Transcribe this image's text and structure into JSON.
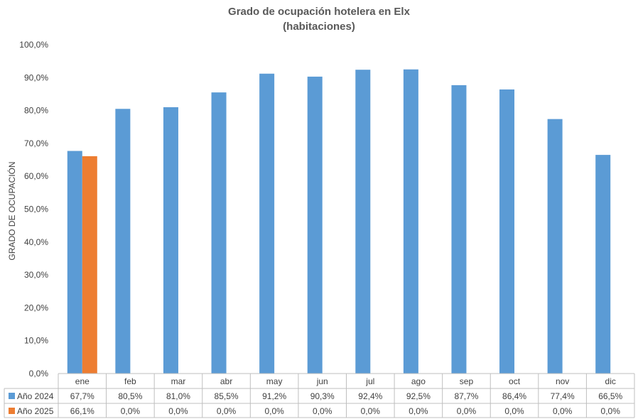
{
  "chart_data": {
    "type": "bar",
    "title": "Grado de ocupación hotelera en Elx",
    "subtitle": "(habitaciones)",
    "ylabel": "GRADO DE OCUPACIÓN",
    "xlabel": "",
    "ylim": [
      0,
      100
    ],
    "y_ticks": [
      "0,0%",
      "10,0%",
      "20,0%",
      "30,0%",
      "40,0%",
      "50,0%",
      "60,0%",
      "70,0%",
      "80,0%",
      "90,0%",
      "100,0%"
    ],
    "y_tick_values": [
      0,
      10,
      20,
      30,
      40,
      50,
      60,
      70,
      80,
      90,
      100
    ],
    "grid": false,
    "legend": "data-table-below",
    "categories": [
      "ene",
      "feb",
      "mar",
      "abr",
      "may",
      "jun",
      "jul",
      "ago",
      "sep",
      "oct",
      "nov",
      "dic"
    ],
    "series": [
      {
        "name": "Año 2024",
        "color": "#5b9bd5",
        "values": [
          67.7,
          80.5,
          81.0,
          85.5,
          91.2,
          90.3,
          92.4,
          92.5,
          87.7,
          86.4,
          77.4,
          66.5
        ],
        "labels": [
          "67,7%",
          "80,5%",
          "81,0%",
          "85,5%",
          "91,2%",
          "90,3%",
          "92,4%",
          "92,5%",
          "87,7%",
          "86,4%",
          "77,4%",
          "66,5%"
        ]
      },
      {
        "name": "Año 2025",
        "color": "#ed7d31",
        "values": [
          66.1,
          0,
          0,
          0,
          0,
          0,
          0,
          0,
          0,
          0,
          0,
          0
        ],
        "labels": [
          "66,1%",
          "0,0%",
          "0,0%",
          "0,0%",
          "0,0%",
          "0,0%",
          "0,0%",
          "0,0%",
          "0,0%",
          "0,0%",
          "0,0%",
          "0,0%"
        ]
      }
    ]
  }
}
